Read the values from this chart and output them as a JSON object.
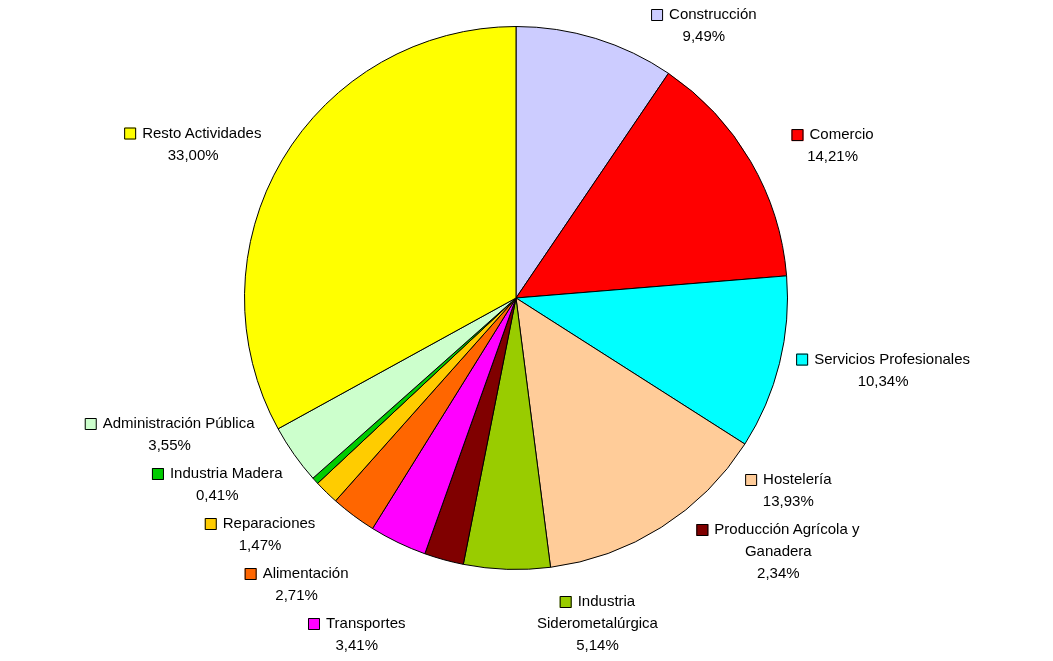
{
  "chart_data": {
    "type": "pie",
    "categories": [
      "Construcción",
      "Comercio",
      "Servicios Profesionales",
      "Hostelería",
      "Industria Siderometalúrgica",
      "Producción Agrícola y Ganadera",
      "Transportes",
      "Alimentación",
      "Reparaciones",
      "Industria Madera",
      "Administración Pública",
      "Resto Actividades"
    ],
    "values": [
      9.49,
      14.21,
      10.34,
      13.93,
      5.14,
      2.34,
      3.41,
      2.71,
      1.47,
      0.41,
      3.55,
      33.0
    ],
    "colors": [
      "#ccccff",
      "#ff0000",
      "#00ffff",
      "#ffcc99",
      "#99cc00",
      "#800000",
      "#ff00ff",
      "#ff6600",
      "#ffcc00",
      "#00cc00",
      "#ccffcc",
      "#ffff00"
    ],
    "legend": "right",
    "value_labels": [
      "9,49%",
      "14,21%",
      "10,34%",
      "13,93%",
      "5,14%",
      "2,34%",
      "3,41%",
      "2,71%",
      "1,47%",
      "0,41%",
      "3,55%",
      "33,00%"
    ]
  }
}
